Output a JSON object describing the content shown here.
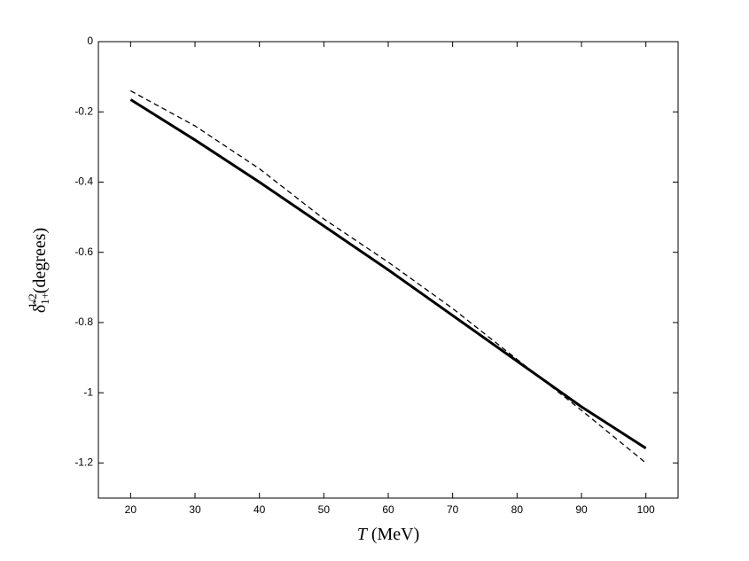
{
  "chart_data": {
    "type": "line",
    "xlabel": {
      "symbol": "T",
      "unit": "(MeV)"
    },
    "ylabel": {
      "symbol": "δ̃",
      "sup": "1/2",
      "sub": "1+",
      "unit": "(degrees)"
    },
    "x": [
      20,
      30,
      40,
      50,
      60,
      70,
      80,
      90,
      100
    ],
    "series": [
      {
        "color": "#000000",
        "style": "solid",
        "values": [
          -0.165,
          -0.28,
          -0.4,
          -0.525,
          -0.65,
          -0.78,
          -0.91,
          -1.04,
          -1.158
        ]
      },
      {
        "color": "#000000",
        "style": "dashed",
        "values": [
          -0.14,
          -0.24,
          -0.362,
          -0.505,
          -0.628,
          -0.76,
          -0.905,
          -1.05,
          -1.2
        ]
      }
    ],
    "xlim": [
      15,
      105
    ],
    "xticks": [
      20,
      30,
      40,
      50,
      60,
      70,
      80,
      90,
      100
    ],
    "ylim": [
      -1.3,
      0
    ],
    "yticks": [
      0,
      -0.2,
      -0.4,
      -0.6,
      -0.8,
      -1,
      -1.2
    ],
    "grid": false
  }
}
